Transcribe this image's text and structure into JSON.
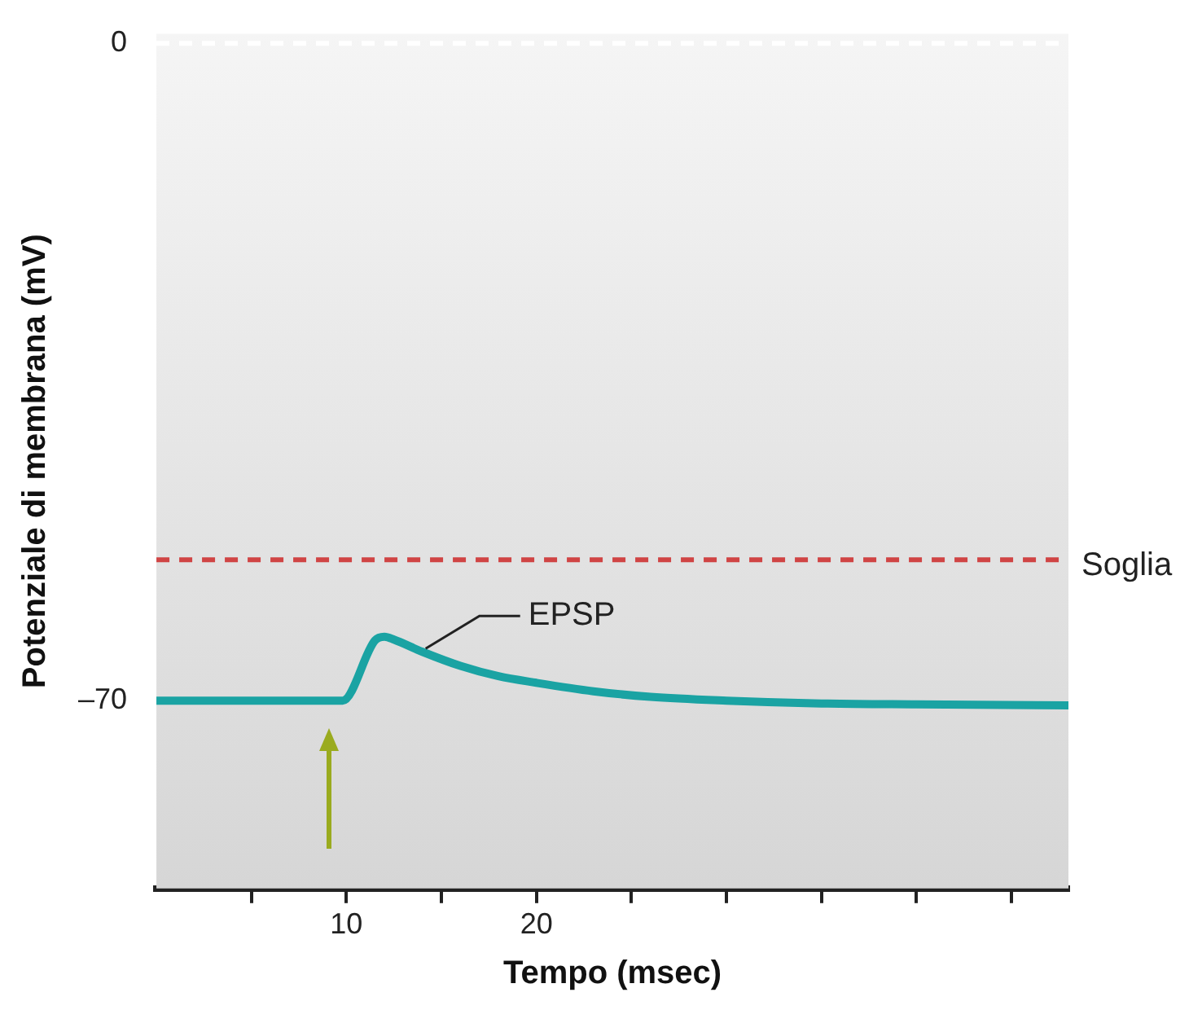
{
  "chart_data": {
    "type": "line",
    "xlabel": "Tempo (msec)",
    "ylabel": "Potenziale di membrana (mV)",
    "xlim": [
      0,
      48
    ],
    "ylim": [
      -90,
      1
    ],
    "xticks": [
      {
        "value": 5,
        "label": null
      },
      10,
      {
        "value": 15,
        "label": null
      },
      20,
      {
        "value": 25,
        "label": null
      },
      {
        "value": 30,
        "label": null
      },
      {
        "value": 35,
        "label": null
      },
      {
        "value": 40,
        "label": null
      },
      {
        "value": 45,
        "label": null
      }
    ],
    "yticks": [
      0,
      {
        "value": -70,
        "label": "–70"
      }
    ],
    "series": [
      {
        "color": "#1aa3a3",
        "x": [
          0,
          9.8,
          11.5,
          12,
          12.5,
          14,
          16,
          18,
          20,
          23,
          26,
          30,
          35,
          40,
          48
        ],
        "values": [
          -70,
          -70,
          -63.6,
          -63.2,
          -63.5,
          -64.8,
          -66.3,
          -67.4,
          -68.1,
          -69,
          -69.6,
          -70,
          -70.3,
          -70.4,
          -70.5
        ]
      }
    ],
    "ref_lines": [
      {
        "axis": "y",
        "value": 0,
        "label": null,
        "color": "#ffffff",
        "line_style": "dashed"
      },
      {
        "axis": "y",
        "value": -55,
        "label": "Soglia",
        "color": "#d04444",
        "line_style": "dashed"
      }
    ],
    "annotations": [
      {
        "text": "EPSP",
        "x": 14,
        "y": -64.8
      }
    ]
  }
}
